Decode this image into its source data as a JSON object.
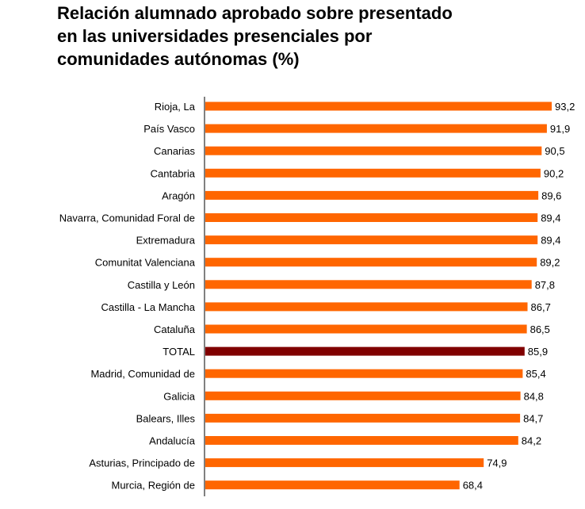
{
  "chart_data": {
    "type": "bar",
    "orientation": "horizontal",
    "title_lines": [
      "Relación alumnado aprobado sobre presentado",
      "en las universidades presenciales por",
      "comunidades autónomas (%)"
    ],
    "categories": [
      "Rioja, La",
      "País Vasco",
      "Canarias",
      "Cantabria",
      "Aragón",
      "Navarra, Comunidad Foral de",
      "Extremadura",
      "Comunitat Valenciana",
      "Castilla y León",
      "Castilla - La Mancha",
      "Cataluña",
      "TOTAL",
      "Madrid, Comunidad de",
      "Galicia",
      "Balears, Illes",
      "Andalucía",
      "Asturias, Principado de",
      "Murcia, Región de"
    ],
    "values": [
      93.2,
      91.9,
      90.5,
      90.2,
      89.6,
      89.4,
      89.4,
      89.2,
      87.8,
      86.7,
      86.5,
      85.9,
      85.4,
      84.8,
      84.7,
      84.2,
      74.9,
      68.4
    ],
    "value_labels": [
      "93,2",
      "91,9",
      "90,5",
      "90,2",
      "89,6",
      "89,4",
      "89,4",
      "89,2",
      "87,8",
      "86,7",
      "86,5",
      "85,9",
      "85,4",
      "84,8",
      "84,7",
      "84,2",
      "74,9",
      "68,4"
    ],
    "highlight_category": "TOTAL",
    "xlim": [
      0,
      93.2
    ],
    "grid": false,
    "legend": "none",
    "colors": {
      "bar": "#FF6600",
      "highlight_bar": "#800000",
      "axis": "#000000",
      "text": "#000000"
    }
  }
}
